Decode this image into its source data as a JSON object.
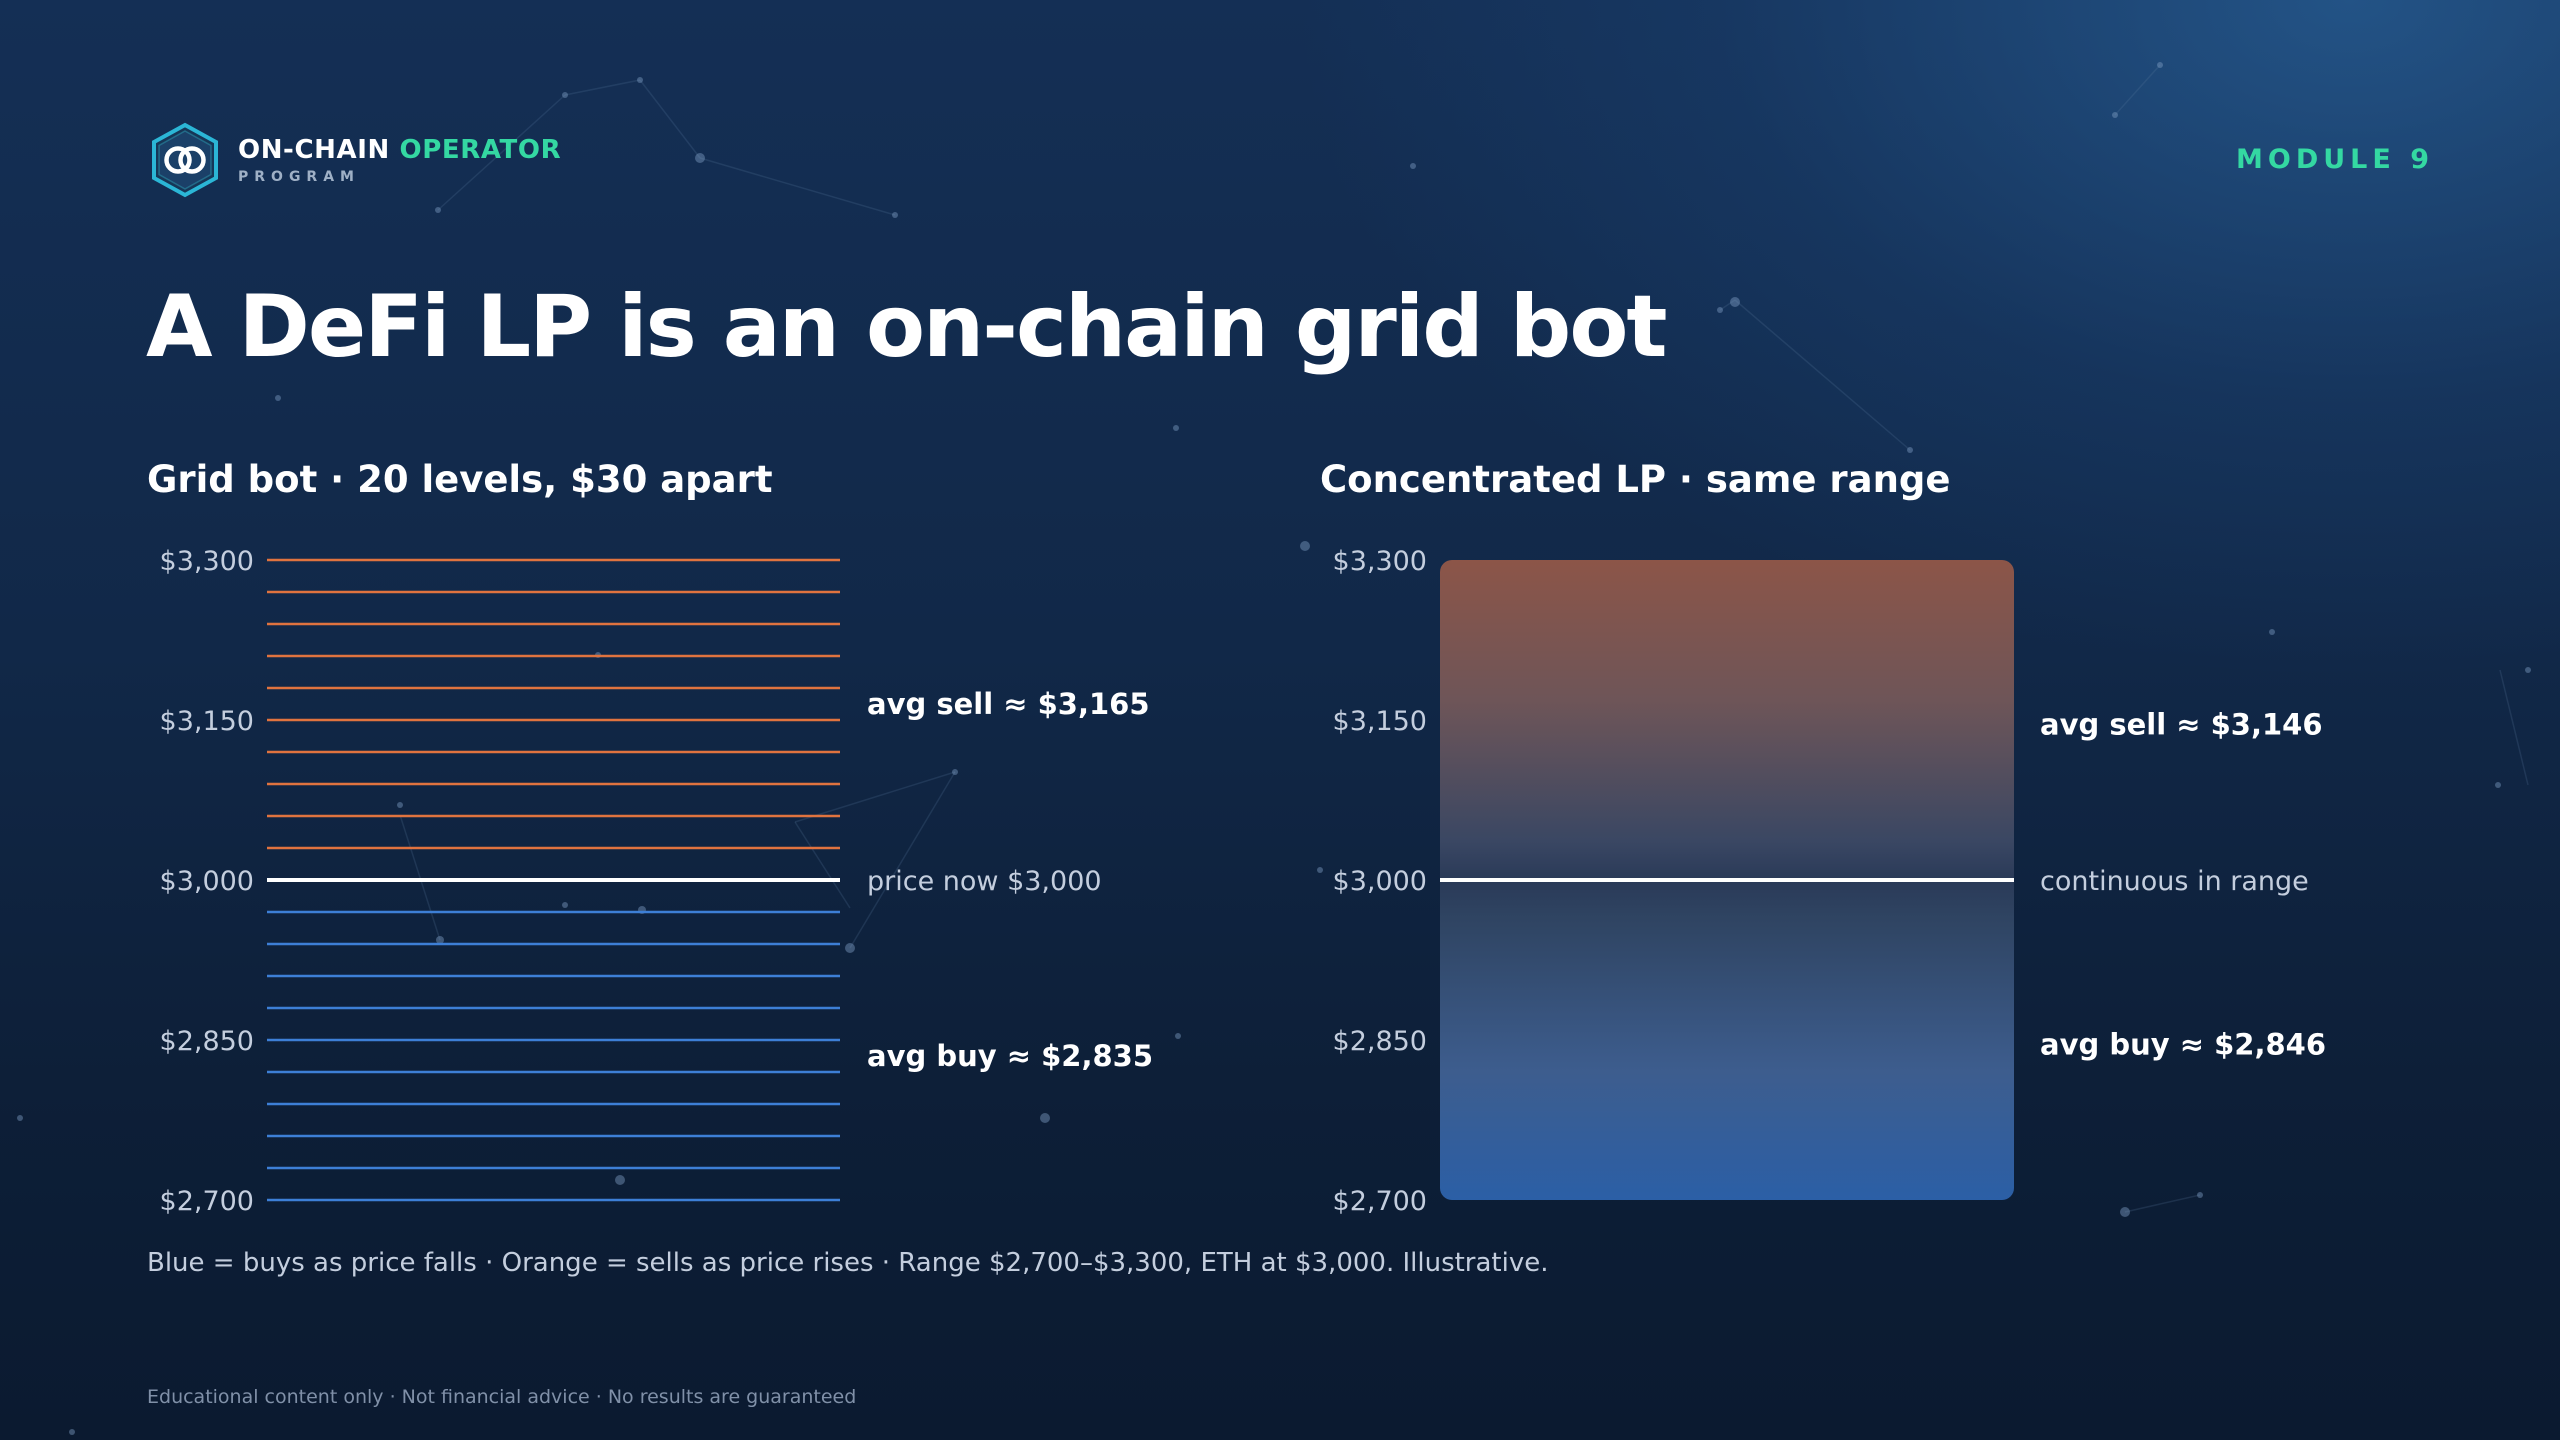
{
  "brand": {
    "name_primary": "ON-CHAIN",
    "name_accent": "OPERATOR",
    "subtitle": "PROGRAM",
    "logo_icon": "hexagon-linked-rings-logo"
  },
  "module_label": "MODULE 9",
  "title": "A DeFi LP is an on-chain grid bot",
  "colors": {
    "accent": "#34d8a2",
    "sell": "#e0733f",
    "buy": "#3d7fd6",
    "price_line": "#ffffff"
  },
  "chart_data": [
    {
      "type": "grid-levels",
      "title": "Grid bot · 20 levels, $30 apart",
      "y_ticks": [
        {
          "value": 3300,
          "label": "$3,300"
        },
        {
          "value": 3150,
          "label": "$3,150"
        },
        {
          "value": 3000,
          "label": "$3,000"
        },
        {
          "value": 2850,
          "label": "$2,850"
        },
        {
          "value": 2700,
          "label": "$2,700"
        }
      ],
      "ylim": [
        2700,
        3300
      ],
      "current_price": 3000,
      "level_spacing": 30,
      "sell_levels": [
        3030,
        3060,
        3090,
        3120,
        3150,
        3180,
        3210,
        3240,
        3270,
        3300
      ],
      "buy_levels": [
        2700,
        2730,
        2760,
        2790,
        2820,
        2850,
        2880,
        2910,
        2940,
        2970
      ],
      "annotations": [
        {
          "text": "avg sell ≈ $3,165",
          "value": 3165,
          "emphasis": true
        },
        {
          "text": "price now $3,000",
          "value": 3000,
          "emphasis": false
        },
        {
          "text": "avg buy ≈ $2,835",
          "value": 2835,
          "emphasis": true
        }
      ]
    },
    {
      "type": "range-band",
      "title": "Concentrated LP · same range",
      "y_ticks": [
        {
          "value": 3300,
          "label": "$3,300"
        },
        {
          "value": 3150,
          "label": "$3,150"
        },
        {
          "value": 3000,
          "label": "$3,000"
        },
        {
          "value": 2850,
          "label": "$2,850"
        },
        {
          "value": 2700,
          "label": "$2,700"
        }
      ],
      "ylim": [
        2700,
        3300
      ],
      "range": [
        2700,
        3300
      ],
      "current_price": 3000,
      "annotations": [
        {
          "text": "avg sell ≈ $3,146",
          "value": 3146,
          "emphasis": true
        },
        {
          "text": "continuous in range",
          "value": 3000,
          "emphasis": false
        },
        {
          "text": "avg buy ≈ $2,846",
          "value": 2846,
          "emphasis": true
        }
      ]
    }
  ],
  "caption": "Blue = buys as price falls · Orange = sells as price rises · Range $2,700–$3,300, ETH at $3,000. Illustrative.",
  "footer": "Educational content only · Not financial advice · No results are guaranteed"
}
